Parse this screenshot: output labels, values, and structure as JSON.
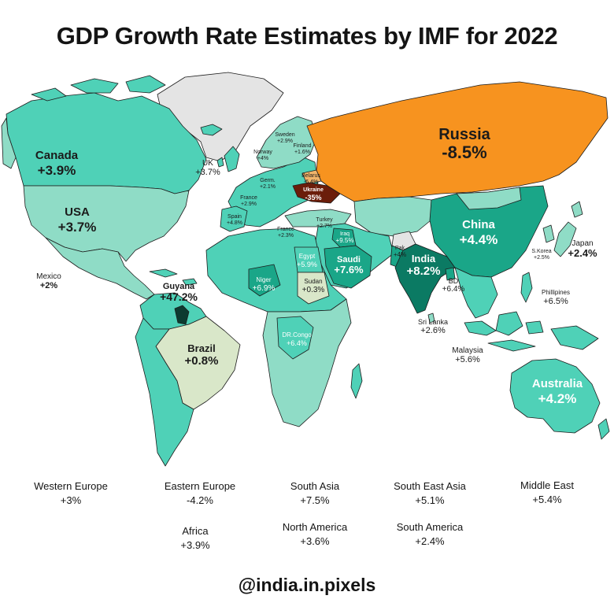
{
  "title": "GDP Growth Rate Estimates by IMF for 2022",
  "handle": "@india.in.pixels",
  "colors": {
    "base": "#4fd1b7",
    "light_teal": "#8fdcc6",
    "dark_teal": "#1aa688",
    "darkest_teal": "#0b7a63",
    "pale": "#d9e7c9",
    "russia": "#f7931f",
    "ukraine": "#6b1d0a",
    "no_data": "#e4e4e4",
    "border": "#1d1d1d"
  },
  "countries": {
    "russia": {
      "name": "Russia",
      "value": "-8.5%"
    },
    "canada": {
      "name": "Canada",
      "value": "+3.9%"
    },
    "usa": {
      "name": "USA",
      "value": "+3.7%"
    },
    "mexico": {
      "name": "Mexico",
      "value": "+2%"
    },
    "uk": {
      "name": "UK",
      "value": "+3.7%"
    },
    "norway": {
      "name": "Norway",
      "value": "+4%"
    },
    "sweden": {
      "name": "Sweden",
      "value": "+2.9%"
    },
    "finland": {
      "name": "Finland",
      "value": "+1.6%"
    },
    "germany": {
      "name": "Germ.",
      "value": "+2.1%"
    },
    "belarus": {
      "name": "Belarus",
      "value": "-6.4%"
    },
    "ukraine": {
      "name": "Ukraine",
      "value": "-35%"
    },
    "france": {
      "name": "France",
      "value": "+2.9%"
    },
    "spain": {
      "name": "Spain",
      "value": "+4.8%"
    },
    "france2": {
      "name": "France",
      "value": "+2.3%"
    },
    "turkey": {
      "name": "Turkey",
      "value": "+2.7%"
    },
    "iraq": {
      "name": "Iraq",
      "value": "+9.5%"
    },
    "egypt": {
      "name": "Egypt",
      "value": "+5.9%"
    },
    "saudi": {
      "name": "Saudi",
      "value": "+7.6%"
    },
    "pak": {
      "name": "Pak",
      "value": "+4%"
    },
    "india": {
      "name": "India",
      "value": "+8.2%"
    },
    "china": {
      "name": "China",
      "value": "+4.4%"
    },
    "skorea": {
      "name": "S.Korea",
      "value": "+2.5%"
    },
    "japan": {
      "name": "Japan",
      "value": "+2.4%"
    },
    "bd": {
      "name": "BD",
      "value": "+6.4%"
    },
    "philippines": {
      "name": "Phillipines",
      "value": "+6.5%"
    },
    "srilanka": {
      "name": "Sri Lanka",
      "value": "+2.6%"
    },
    "malaysia": {
      "name": "Malaysia",
      "value": "+5.6%"
    },
    "australia": {
      "name": "Australia",
      "value": "+4.2%"
    },
    "guyana": {
      "name": "Guyana",
      "value": "+47.2%"
    },
    "brazil": {
      "name": "Brazil",
      "value": "+0.8%"
    },
    "niger": {
      "name": "Niger",
      "value": "+6.9%"
    },
    "sudan": {
      "name": "Sudan",
      "value": "+0.3%"
    },
    "drcongo": {
      "name": "DR.Congo",
      "value": "+6.4%"
    }
  },
  "regions": [
    {
      "name": "Western Europe",
      "value": "+3%"
    },
    {
      "name": "Eastern Europe",
      "value": "-4.2%"
    },
    {
      "name": "South Asia",
      "value": "+7.5%"
    },
    {
      "name": "South East Asia",
      "value": "+5.1%"
    },
    {
      "name": "Middle East",
      "value": "+5.4%"
    },
    {
      "name": "Africa",
      "value": "+3.9%"
    },
    {
      "name": "North America",
      "value": "+3.6%"
    },
    {
      "name": "South America",
      "value": "+2.4%"
    }
  ]
}
